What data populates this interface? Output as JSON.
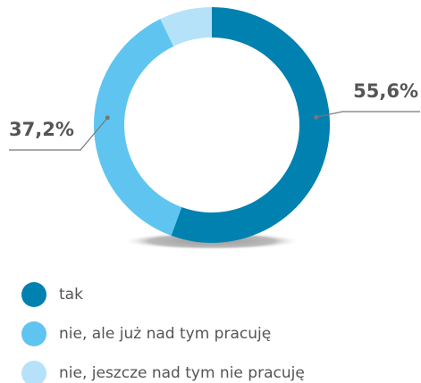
{
  "chart_data": {
    "type": "donut",
    "categories": [
      "tak",
      "nie, ale już nad tym pracuję",
      "nie, jeszcze nad tym nie pracuję"
    ],
    "values": [
      55.6,
      37.2,
      7.2
    ],
    "value_labels": [
      "55,6%",
      "37,2%",
      null
    ],
    "colors": [
      "#0081b0",
      "#5fc5f0",
      "#b5e2f8"
    ]
  }
}
